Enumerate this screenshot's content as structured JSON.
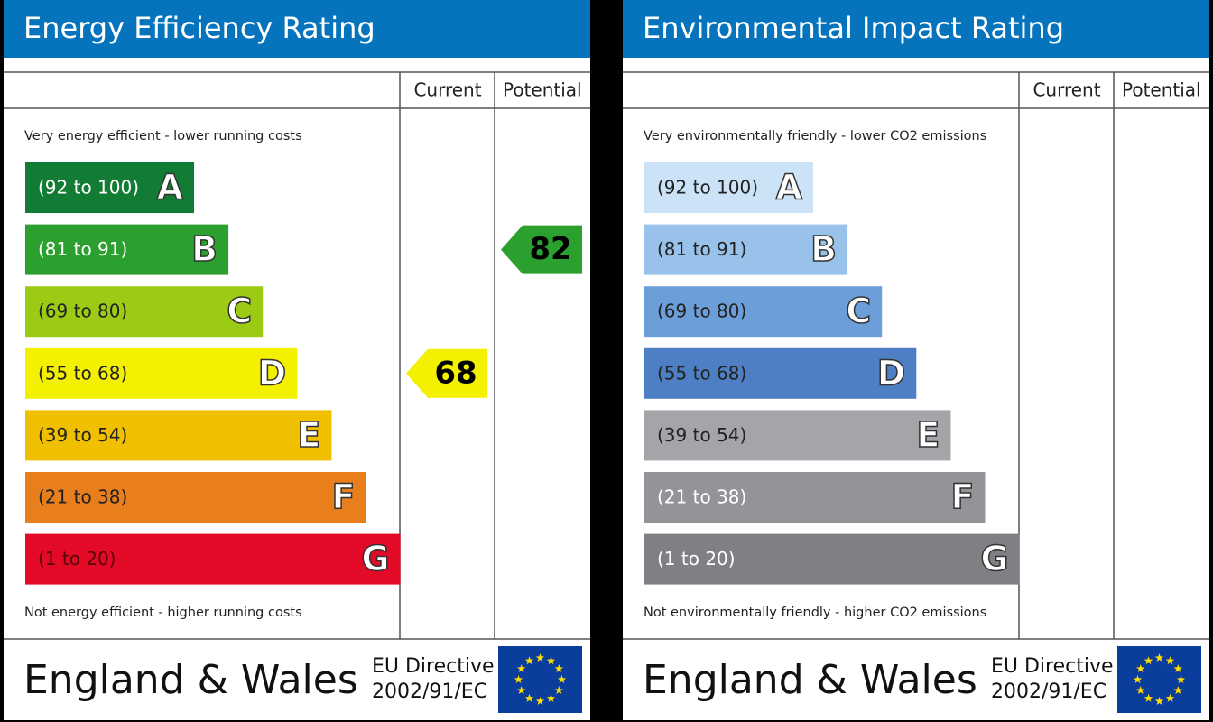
{
  "panels": [
    {
      "title": "Energy Efficiency Rating",
      "columns": [
        "Current",
        "Potential"
      ],
      "top_text": "Very energy efficient - lower running costs",
      "bottom_text": "Not energy efficient - higher running costs",
      "bands": [
        {
          "range": "(92 to 100)",
          "letter": "A",
          "color": "#127c34",
          "text_color": "#ffffff"
        },
        {
          "range": "(81 to 91)",
          "letter": "B",
          "color": "#2ba02f",
          "text_color": "#ffffff"
        },
        {
          "range": "(69 to 80)",
          "letter": "C",
          "color": "#9bcb14",
          "text_color": "#222222"
        },
        {
          "range": "(55 to 68)",
          "letter": "D",
          "color": "#f4f100",
          "text_color": "#222222"
        },
        {
          "range": "(39 to 54)",
          "letter": "E",
          "color": "#f0bf00",
          "text_color": "#222222"
        },
        {
          "range": "(21 to 38)",
          "letter": "F",
          "color": "#e87e1c",
          "text_color": "#222222"
        },
        {
          "range": "(1 to 20)",
          "letter": "G",
          "color": "#e20a27",
          "text_color": "#5a0008"
        }
      ],
      "current": 68,
      "potential": 82,
      "footer": {
        "region": "England & Wales",
        "directive": [
          "EU Directive",
          "2002/91/EC"
        ]
      }
    },
    {
      "title": "Environmental Impact Rating",
      "columns": [
        "Current",
        "Potential"
      ],
      "top_text": "Very environmentally friendly - lower CO2 emissions",
      "bottom_text": "Not environmentally friendly - higher CO2 emissions",
      "bands": [
        {
          "range": "(92 to 100)",
          "letter": "A",
          "color": "#cce2f6",
          "text_color": "#222222"
        },
        {
          "range": "(81 to 91)",
          "letter": "B",
          "color": "#98c2ea",
          "text_color": "#222222"
        },
        {
          "range": "(69 to 80)",
          "letter": "C",
          "color": "#6c9fd9",
          "text_color": "#222222"
        },
        {
          "range": "(55 to 68)",
          "letter": "D",
          "color": "#4e7fc4",
          "text_color": "#222222"
        },
        {
          "range": "(39 to 54)",
          "letter": "E",
          "color": "#a3a5a8",
          "text_color": "#222222"
        },
        {
          "range": "(21 to 38)",
          "letter": "F",
          "color": "#939497",
          "text_color": "#ffffff"
        },
        {
          "range": "(1 to 20)",
          "letter": "G",
          "color": "#7f8084",
          "text_color": "#ffffff"
        }
      ],
      "footer": {
        "region": "England & Wales",
        "directive": [
          "EU Directive",
          "2002/91/EC"
        ]
      }
    }
  ]
}
